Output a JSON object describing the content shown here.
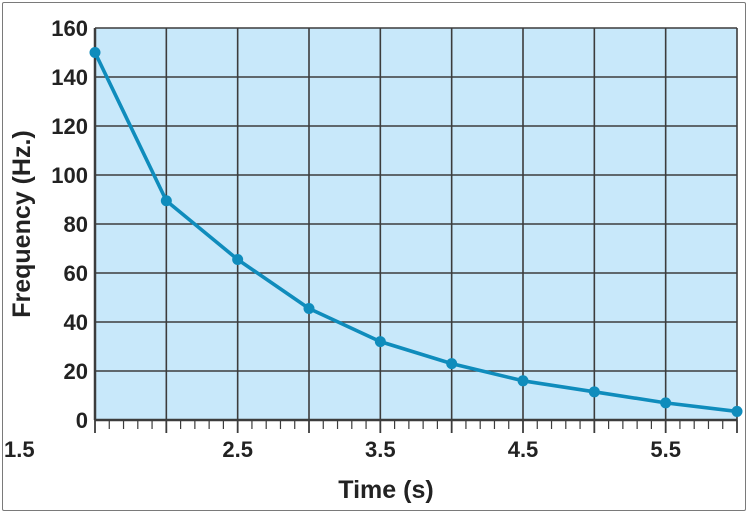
{
  "chart_data": {
    "type": "line",
    "title": "",
    "xlabel": "Time (s)",
    "ylabel": "Frequency (Hz.)",
    "xlim": [
      1.5,
      6.0
    ],
    "ylim": [
      0,
      160
    ],
    "x_ticks": [
      1.5,
      2.5,
      3.5,
      4.5,
      5.5
    ],
    "x_tick_labels": [
      "1.5",
      "2.5",
      "3.5",
      "4.5",
      "5.5"
    ],
    "y_ticks": [
      0,
      20,
      40,
      60,
      80,
      100,
      120,
      140,
      160
    ],
    "y_tick_labels": [
      "0",
      "20",
      "40",
      "60",
      "80",
      "100",
      "120",
      "140",
      "160"
    ],
    "grid": true,
    "series": [
      {
        "x": [
          1.5,
          2.0,
          2.5,
          3.0,
          3.5,
          4.0,
          4.5,
          5.0,
          5.5,
          6.0
        ],
        "y": [
          150,
          89.5,
          65.5,
          45.5,
          32,
          23,
          16,
          11.5,
          7,
          3.5
        ]
      }
    ],
    "colors": {
      "plot_bg": "#c8e8fa",
      "grid": "#3c3c3c",
      "line": "#0f8cbc",
      "text": "#222222"
    }
  }
}
